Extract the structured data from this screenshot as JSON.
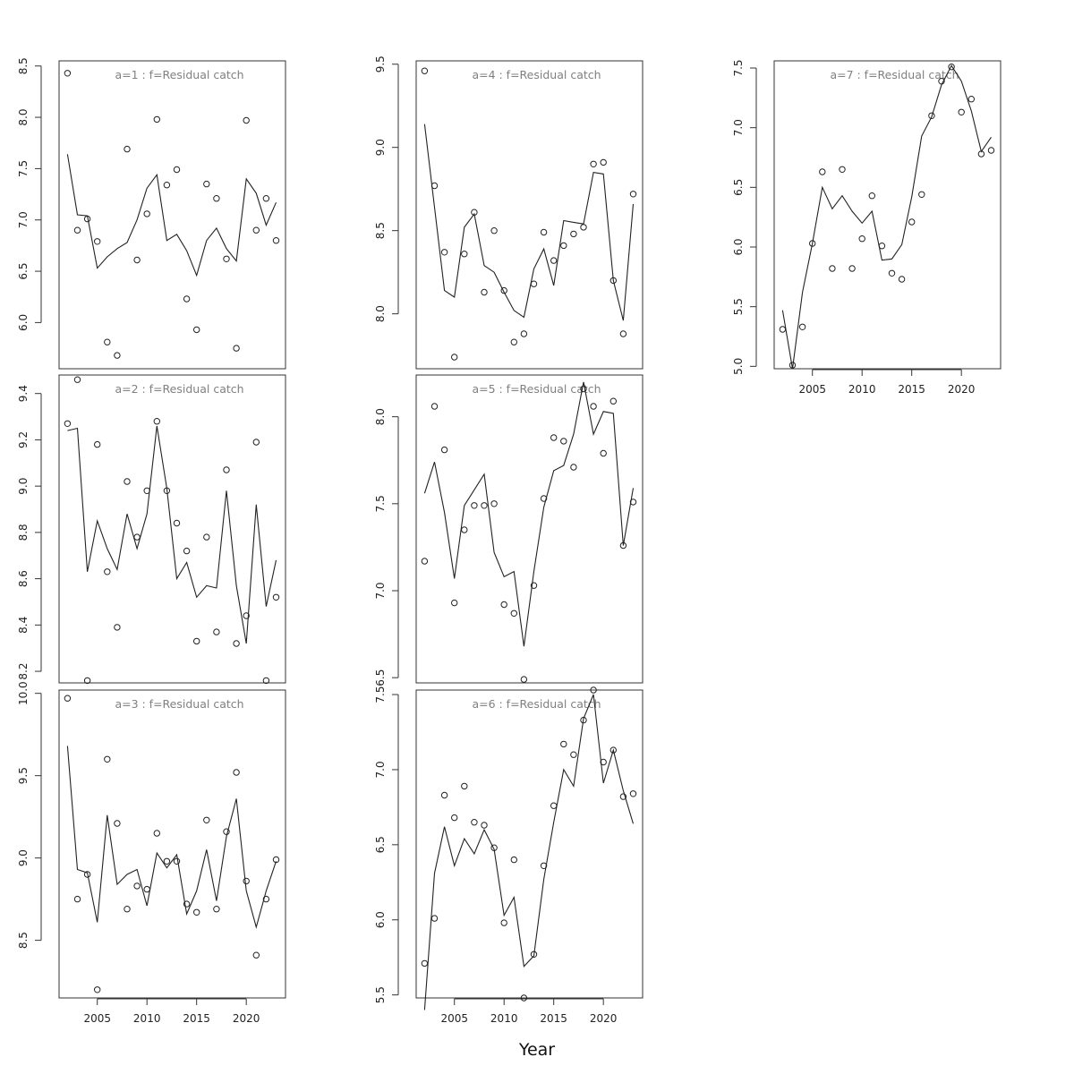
{
  "xlabel": "Year",
  "chart_data": [
    {
      "type": "scatter",
      "title": "a=1  :  f=Residual catch",
      "x": [
        2002,
        2003,
        2004,
        2005,
        2006,
        2007,
        2008,
        2009,
        2010,
        2011,
        2012,
        2013,
        2014,
        2015,
        2016,
        2017,
        2018,
        2019,
        2020,
        2021,
        2022,
        2023
      ],
      "observed": [
        8.43,
        6.9,
        7.01,
        6.79,
        5.81,
        5.68,
        7.69,
        6.61,
        7.06,
        7.98,
        7.34,
        7.49,
        6.23,
        5.93,
        7.35,
        7.21,
        6.62,
        5.75,
        7.97,
        6.9,
        7.21,
        6.8
      ],
      "fitted": [
        7.64,
        7.05,
        7.04,
        6.53,
        6.64,
        6.72,
        6.78,
        7.0,
        7.31,
        7.44,
        6.8,
        6.86,
        6.7,
        6.46,
        6.8,
        6.92,
        6.72,
        6.6,
        7.4,
        7.26,
        6.95,
        7.17
      ],
      "ylim": [
        5.55,
        8.55
      ],
      "yticks": [
        "6.0",
        "6.5",
        "7.0",
        "7.5",
        "8.0",
        "8.5"
      ],
      "xticks": [],
      "grid": false
    },
    {
      "type": "scatter",
      "title": "a=2  :  f=Residual catch",
      "x": [
        2002,
        2003,
        2004,
        2005,
        2006,
        2007,
        2008,
        2009,
        2010,
        2011,
        2012,
        2013,
        2014,
        2015,
        2016,
        2017,
        2018,
        2019,
        2020,
        2021,
        2022,
        2023
      ],
      "observed": [
        9.27,
        9.46,
        8.16,
        9.18,
        8.63,
        8.39,
        9.02,
        8.78,
        8.98,
        9.28,
        8.98,
        8.84,
        8.72,
        8.33,
        8.78,
        8.37,
        9.07,
        8.32,
        8.44,
        9.19,
        8.16,
        8.52
      ],
      "fitted": [
        9.24,
        9.25,
        8.63,
        8.85,
        8.73,
        8.64,
        8.88,
        8.73,
        8.88,
        9.26,
        8.99,
        8.6,
        8.67,
        8.52,
        8.57,
        8.56,
        8.98,
        8.57,
        8.32,
        8.92,
        8.48,
        8.68
      ],
      "ylim": [
        8.15,
        9.48
      ],
      "yticks": [
        "8.2",
        "8.4",
        "8.6",
        "8.8",
        "9.0",
        "9.2",
        "9.4"
      ],
      "xticks": [],
      "grid": false
    },
    {
      "type": "scatter",
      "title": "a=3  :  f=Residual catch",
      "x": [
        2002,
        2003,
        2004,
        2005,
        2006,
        2007,
        2008,
        2009,
        2010,
        2011,
        2012,
        2013,
        2014,
        2015,
        2016,
        2017,
        2018,
        2019,
        2020,
        2021,
        2022,
        2023
      ],
      "observed": [
        9.97,
        8.75,
        8.9,
        8.2,
        9.6,
        9.21,
        8.69,
        8.83,
        8.81,
        9.15,
        8.98,
        8.98,
        8.72,
        8.67,
        9.23,
        8.69,
        9.16,
        9.52,
        8.86,
        8.41,
        8.75,
        8.99
      ],
      "fitted": [
        9.68,
        8.93,
        8.91,
        8.61,
        9.26,
        8.84,
        8.9,
        8.93,
        8.71,
        9.03,
        8.94,
        9.02,
        8.66,
        8.8,
        9.05,
        8.74,
        9.13,
        9.36,
        8.8,
        8.58,
        8.8,
        8.98
      ],
      "ylim": [
        8.15,
        10.02
      ],
      "yticks": [
        "8.5",
        "9.0",
        "9.5",
        "10.0"
      ],
      "xticks": [
        "2005",
        "2010",
        "2015",
        "2020"
      ],
      "grid": false
    },
    {
      "type": "scatter",
      "title": "a=4  :  f=Residual catch",
      "x": [
        2002,
        2003,
        2004,
        2005,
        2006,
        2007,
        2008,
        2009,
        2010,
        2011,
        2012,
        2013,
        2014,
        2015,
        2016,
        2017,
        2018,
        2019,
        2020,
        2021,
        2022,
        2023
      ],
      "observed": [
        9.46,
        8.77,
        8.37,
        7.74,
        8.36,
        8.61,
        8.13,
        8.5,
        8.14,
        7.83,
        7.88,
        8.18,
        8.49,
        8.32,
        8.41,
        8.48,
        8.52,
        8.9,
        8.91,
        8.2,
        7.88,
        8.72
      ],
      "fitted": [
        9.14,
        8.64,
        8.14,
        8.1,
        8.52,
        8.6,
        8.29,
        8.25,
        8.13,
        8.02,
        7.98,
        8.27,
        8.39,
        8.17,
        8.56,
        8.55,
        8.54,
        8.85,
        8.84,
        8.2,
        7.96,
        8.66
      ],
      "ylim": [
        7.67,
        9.52
      ],
      "yticks": [
        "8.0",
        "8.5",
        "9.0",
        "9.5"
      ],
      "xticks": [],
      "grid": false
    },
    {
      "type": "scatter",
      "title": "a=5  :  f=Residual catch",
      "x": [
        2002,
        2003,
        2004,
        2005,
        2006,
        2007,
        2008,
        2009,
        2010,
        2011,
        2012,
        2013,
        2014,
        2015,
        2016,
        2017,
        2018,
        2019,
        2020,
        2021,
        2022,
        2023
      ],
      "observed": [
        7.17,
        8.06,
        7.81,
        6.93,
        7.35,
        7.49,
        7.49,
        7.5,
        6.92,
        6.87,
        6.49,
        7.03,
        7.53,
        7.88,
        7.86,
        7.71,
        8.16,
        8.06,
        7.79,
        8.09,
        7.26,
        7.51
      ],
      "fitted": [
        7.56,
        7.74,
        7.45,
        7.07,
        7.49,
        7.58,
        7.67,
        7.22,
        7.08,
        7.11,
        6.68,
        7.11,
        7.48,
        7.69,
        7.72,
        7.9,
        8.2,
        7.9,
        8.03,
        8.02,
        7.26,
        7.59
      ],
      "ylim": [
        6.47,
        8.24
      ],
      "yticks": [
        "6.5",
        "7.0",
        "7.5",
        "8.0"
      ],
      "xticks": [],
      "grid": false
    },
    {
      "type": "scatter",
      "title": "a=6  :  f=Residual catch",
      "x": [
        2002,
        2003,
        2004,
        2005,
        2006,
        2007,
        2008,
        2009,
        2010,
        2011,
        2012,
        2013,
        2014,
        2015,
        2016,
        2017,
        2018,
        2019,
        2020,
        2021,
        2022,
        2023
      ],
      "observed": [
        5.71,
        6.01,
        6.83,
        6.68,
        6.89,
        6.65,
        6.63,
        6.48,
        5.98,
        6.4,
        5.48,
        5.77,
        6.36,
        6.76,
        7.17,
        7.1,
        7.33,
        7.53,
        7.05,
        7.13,
        6.82,
        6.84
      ],
      "fitted": [
        5.4,
        6.31,
        6.62,
        6.36,
        6.54,
        6.44,
        6.6,
        6.47,
        6.03,
        6.15,
        5.69,
        5.76,
        6.27,
        6.65,
        7.0,
        6.89,
        7.34,
        7.5,
        6.91,
        7.13,
        6.86,
        6.64
      ],
      "ylim": [
        5.48,
        7.53
      ],
      "yticks": [
        "5.5",
        "6.0",
        "6.5",
        "7.0",
        "7.5"
      ],
      "xticks": [
        "2005",
        "2010",
        "2015",
        "2020"
      ],
      "grid": false
    },
    {
      "type": "scatter",
      "title": "a=7  :  f=Residual catch",
      "x": [
        2002,
        2003,
        2004,
        2005,
        2006,
        2007,
        2008,
        2009,
        2010,
        2011,
        2012,
        2013,
        2014,
        2015,
        2016,
        2017,
        2018,
        2019,
        2020,
        2021,
        2022,
        2023
      ],
      "observed": [
        5.31,
        5.01,
        5.33,
        6.03,
        6.63,
        5.82,
        6.65,
        5.82,
        6.07,
        6.43,
        6.01,
        5.78,
        5.73,
        6.21,
        6.44,
        7.1,
        7.39,
        7.51,
        7.13,
        7.24,
        6.78,
        6.81
      ],
      "fitted": [
        5.47,
        4.98,
        5.62,
        6.03,
        6.5,
        6.32,
        6.43,
        6.3,
        6.2,
        6.3,
        5.89,
        5.9,
        6.02,
        6.42,
        6.93,
        7.09,
        7.36,
        7.52,
        7.39,
        7.14,
        6.8,
        6.92
      ],
      "ylim": [
        4.98,
        7.56
      ],
      "yticks": [
        "5.0",
        "5.5",
        "6.0",
        "6.5",
        "7.0",
        "7.5"
      ],
      "xticks": [
        "2005",
        "2010",
        "2015",
        "2020"
      ],
      "grid": false
    }
  ]
}
